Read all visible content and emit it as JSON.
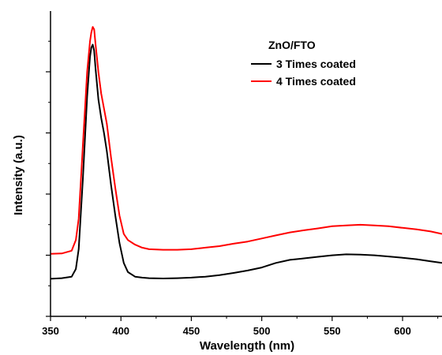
{
  "chart_data": {
    "type": "line",
    "xlabel": "Wavelength (nm)",
    "ylabel": "Intensity (a.u.)",
    "xlim": [
      350,
      628
    ],
    "ylim": [
      0,
      100
    ],
    "xticks": [
      350,
      400,
      450,
      500,
      550,
      600
    ],
    "y_tick_labels_shown": false,
    "legend": {
      "title": "ZnO/FTO",
      "position": "top-right"
    },
    "series": [
      {
        "name": "3 Times coated",
        "color": "#000000",
        "x": [
          350,
          358,
          365,
          368,
          370,
          373,
          376,
          378,
          379,
          380,
          381,
          382,
          384,
          386,
          388,
          390,
          393,
          396,
          399,
          402,
          405,
          410,
          415,
          420,
          430,
          440,
          450,
          460,
          470,
          480,
          490,
          500,
          510,
          520,
          530,
          540,
          550,
          560,
          570,
          580,
          590,
          600,
          610,
          620,
          628
        ],
        "y": [
          12.3,
          12.5,
          13.0,
          15.5,
          22.0,
          45.0,
          72.0,
          85.0,
          88.0,
          89.0,
          87.0,
          81.0,
          71.0,
          65.0,
          60.0,
          54.0,
          43.0,
          33.0,
          24.0,
          17.5,
          14.5,
          13.0,
          12.7,
          12.5,
          12.4,
          12.5,
          12.7,
          13.0,
          13.5,
          14.2,
          15.0,
          16.0,
          17.5,
          18.5,
          19.0,
          19.5,
          20.0,
          20.3,
          20.2,
          20.0,
          19.6,
          19.2,
          18.7,
          18.0,
          17.5
        ]
      },
      {
        "name": "4 Times coated",
        "color": "#ff0000",
        "x": [
          350,
          358,
          365,
          368,
          370,
          373,
          376,
          378,
          379,
          380,
          381,
          382,
          384,
          386,
          388,
          390,
          393,
          396,
          399,
          402,
          405,
          410,
          415,
          420,
          430,
          440,
          450,
          460,
          470,
          480,
          490,
          500,
          510,
          520,
          530,
          540,
          550,
          560,
          570,
          580,
          590,
          600,
          610,
          620,
          628
        ],
        "y": [
          20.5,
          20.6,
          21.5,
          25.0,
          32.0,
          56.0,
          80.0,
          90.0,
          93.0,
          94.8,
          94.0,
          89.0,
          80.0,
          73.0,
          68.0,
          63.0,
          52.0,
          42.0,
          33.0,
          27.0,
          25.0,
          23.5,
          22.5,
          22.0,
          21.8,
          21.8,
          22.0,
          22.5,
          23.0,
          23.8,
          24.5,
          25.5,
          26.5,
          27.5,
          28.2,
          28.8,
          29.5,
          29.8,
          30.0,
          29.8,
          29.5,
          29.0,
          28.5,
          27.8,
          27.0
        ]
      }
    ]
  }
}
